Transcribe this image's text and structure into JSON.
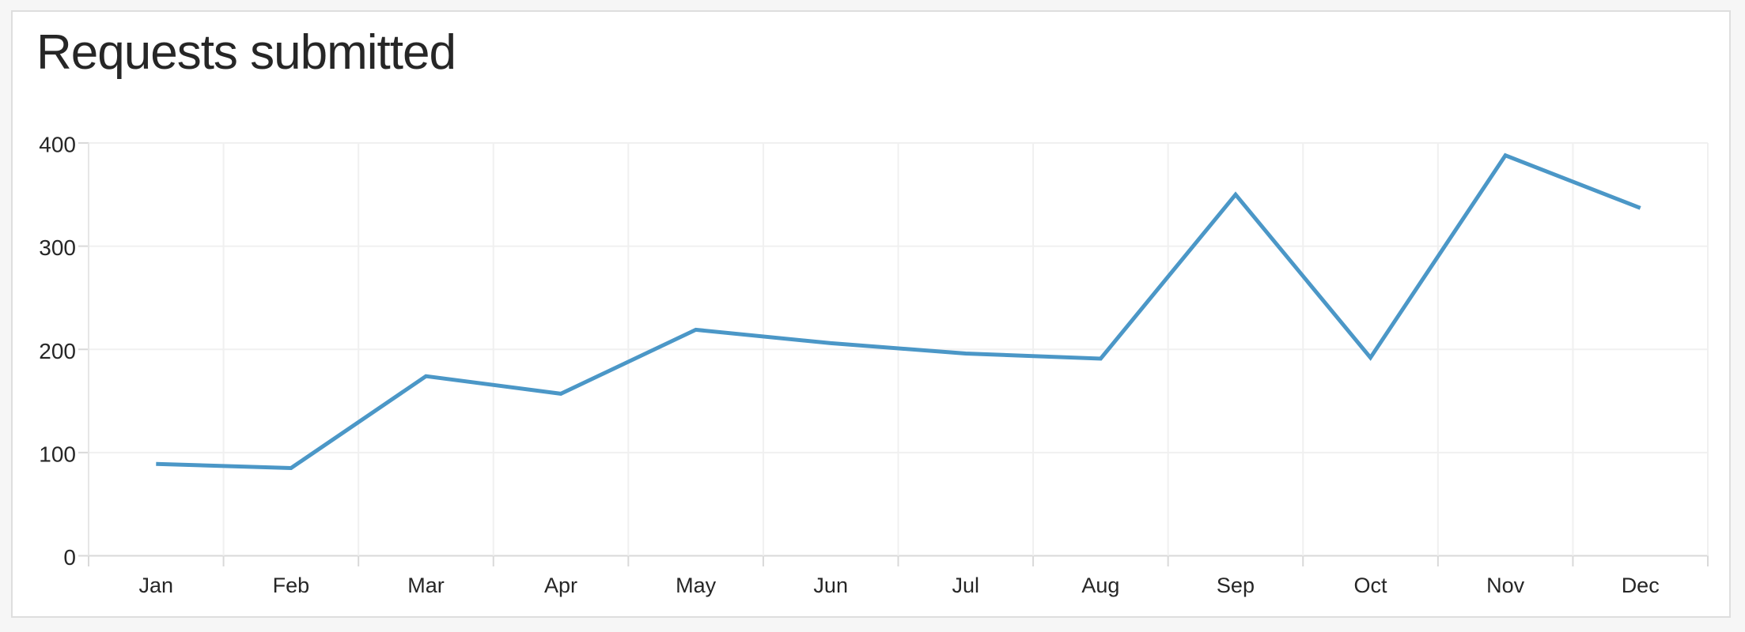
{
  "page": {
    "background": "#f6f6f6"
  },
  "card": {
    "background": "#ffffff",
    "border_color": "#dedede"
  },
  "chart_data": {
    "type": "line",
    "title": "Requests submitted",
    "categories": [
      "Jan",
      "Feb",
      "Mar",
      "Apr",
      "May",
      "Jun",
      "Jul",
      "Aug",
      "Sep",
      "Oct",
      "Nov",
      "Dec"
    ],
    "values": [
      89,
      85,
      174,
      157,
      219,
      206,
      196,
      191,
      350,
      192,
      388,
      337
    ],
    "xlabel": "",
    "ylabel": "",
    "ylim": [
      0,
      400
    ],
    "yticks": [
      0,
      100,
      200,
      300,
      400
    ],
    "grid": true,
    "legend_position": "none",
    "line_color": "#4b97c7",
    "grid_color": "#f0f0f0",
    "axis_line_color": "#d9d9d9",
    "minor_axis_color": "#e6e6e6",
    "label_color": "#262626"
  }
}
